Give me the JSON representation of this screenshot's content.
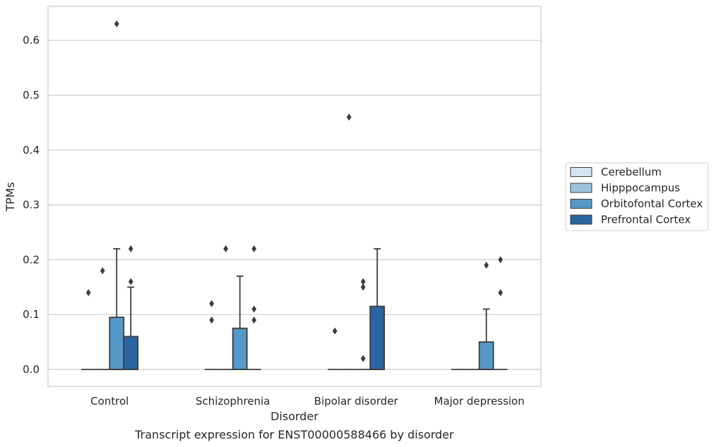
{
  "chart_data": {
    "type": "box",
    "xlabel": "Disorder",
    "ylabel": "TPMs",
    "caption": "Transcript expression for ENST00000588466 by disorder",
    "ylim": [
      -0.03,
      0.66
    ],
    "yticks": [
      "0.0",
      "0.1",
      "0.2",
      "0.3",
      "0.4",
      "0.5",
      "0.6"
    ],
    "grid": "horizontal",
    "legend_position": "right",
    "categories": [
      "Control",
      "Schizophrenia",
      "Bipolar disorder",
      "Major depression"
    ],
    "series": [
      {
        "name": "Cerebellum",
        "color": "#d4e4f2",
        "boxes": [
          {
            "min": 0,
            "q1": 0,
            "median": 0,
            "q3": 0,
            "max": 0,
            "outliers": [
              0.14
            ]
          },
          {
            "min": 0,
            "q1": 0,
            "median": 0,
            "q3": 0,
            "max": 0,
            "outliers": [
              0.09,
              0.12
            ]
          },
          {
            "min": 0,
            "q1": 0,
            "median": 0,
            "q3": 0,
            "max": 0,
            "outliers": [
              0.07
            ]
          },
          {
            "min": 0,
            "q1": 0,
            "median": 0,
            "q3": 0,
            "max": 0,
            "outliers": []
          }
        ]
      },
      {
        "name": "Hipppocampus",
        "color": "#9cc3de",
        "boxes": [
          {
            "min": 0,
            "q1": 0,
            "median": 0,
            "q3": 0,
            "max": 0,
            "outliers": [
              0.18
            ]
          },
          {
            "min": 0,
            "q1": 0,
            "median": 0,
            "q3": 0,
            "max": 0,
            "outliers": [
              0.22
            ]
          },
          {
            "min": 0,
            "q1": 0,
            "median": 0,
            "q3": 0,
            "max": 0,
            "outliers": [
              0.46
            ]
          },
          {
            "min": 0,
            "q1": 0,
            "median": 0,
            "q3": 0,
            "max": 0,
            "outliers": []
          }
        ]
      },
      {
        "name": "Orbitofontal Cortex",
        "color": "#5698c7",
        "boxes": [
          {
            "min": 0,
            "q1": 0,
            "median": 0,
            "q3": 0.095,
            "max": 0.22,
            "outliers": [
              0.63
            ]
          },
          {
            "min": 0,
            "q1": 0,
            "median": 0,
            "q3": 0.075,
            "max": 0.17,
            "outliers": []
          },
          {
            "min": 0,
            "q1": 0,
            "median": 0,
            "q3": 0,
            "max": 0,
            "outliers": [
              0.02,
              0.15,
              0.16
            ]
          },
          {
            "min": 0,
            "q1": 0,
            "median": 0,
            "q3": 0.05,
            "max": 0.11,
            "outliers": [
              0.19
            ]
          }
        ]
      },
      {
        "name": "Prefrontal Cortex",
        "color": "#2a65a1",
        "boxes": [
          {
            "min": 0,
            "q1": 0,
            "median": 0,
            "q3": 0.06,
            "max": 0.15,
            "outliers": [
              0.16,
              0.22
            ]
          },
          {
            "min": 0,
            "q1": 0,
            "median": 0,
            "q3": 0,
            "max": 0,
            "outliers": [
              0.09,
              0.11,
              0.22
            ]
          },
          {
            "min": 0,
            "q1": 0,
            "median": 0,
            "q3": 0.115,
            "max": 0.22,
            "outliers": []
          },
          {
            "min": 0,
            "q1": 0,
            "median": 0,
            "q3": 0,
            "max": 0,
            "outliers": [
              0.14,
              0.2
            ]
          }
        ]
      }
    ]
  }
}
